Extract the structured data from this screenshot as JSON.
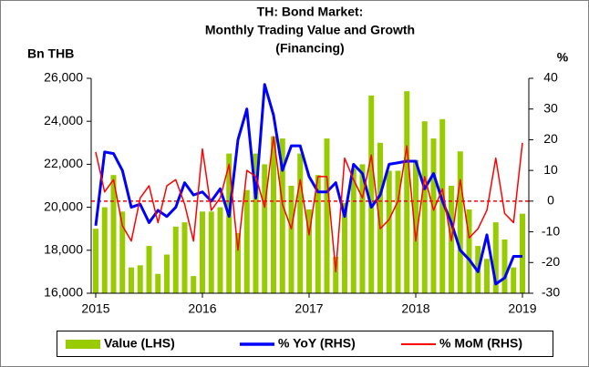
{
  "chart_data": {
    "type": "bar_line",
    "title": [
      "TH: Bond Market:",
      "Monthly Trading Value and Growth",
      "(Financing)"
    ],
    "y_label": "Bn THB",
    "y2_label": "%",
    "categories": [
      "2015",
      null,
      null,
      null,
      null,
      null,
      null,
      null,
      null,
      null,
      null,
      null,
      "2016",
      null,
      null,
      null,
      null,
      null,
      null,
      null,
      null,
      null,
      null,
      null,
      "2017",
      null,
      null,
      null,
      null,
      null,
      null,
      null,
      null,
      null,
      null,
      null,
      "2018",
      null,
      null,
      null,
      null,
      null,
      null,
      null,
      null,
      null,
      null,
      null,
      "2019"
    ],
    "series": [
      {
        "name": "Value (LHS)",
        "color": "#99cc00",
        "kind": "bar",
        "values": [
          19000,
          20000,
          21500,
          19800,
          17200,
          17300,
          18200,
          16900,
          17800,
          19100,
          19300,
          16800,
          19800,
          19800,
          20000,
          22500,
          18800,
          20800,
          22500,
          22000,
          23300,
          23200,
          21000,
          22500,
          19900,
          21500,
          23200,
          17700,
          20200,
          21800,
          22000,
          25200,
          23000,
          21700,
          21700,
          25400,
          22200,
          24000,
          23200,
          24100,
          21000,
          22600,
          19900,
          18200,
          17600,
          19300,
          18500,
          17200,
          19700
        ]
      },
      {
        "name": "% YoY (RHS)",
        "color": "#0000ff",
        "kind": "line",
        "axis": "y2",
        "width": 3,
        "values": [
          -8,
          16,
          15.5,
          10,
          -2,
          -1,
          -7,
          -3,
          -5,
          -2,
          6,
          2,
          3,
          0,
          4,
          -5,
          20,
          30,
          1,
          38,
          28,
          10,
          18,
          18,
          8,
          3,
          3,
          6,
          -5,
          12,
          9,
          -2,
          2,
          12,
          12.5,
          13,
          13,
          4,
          9,
          0,
          -7,
          -16,
          -19,
          -23,
          -11,
          -27,
          -25,
          -18,
          -18
        ]
      },
      {
        "name": "% MoM (RHS)",
        "color": "#ff0000",
        "kind": "line",
        "axis": "y2",
        "width": 1.5,
        "values": [
          16,
          3,
          7,
          -8,
          -13,
          1,
          5,
          -7,
          5,
          7,
          -1,
          -13,
          17,
          -3,
          1,
          12,
          -16,
          10,
          8,
          -2,
          21,
          -1,
          -9,
          7,
          -11,
          8,
          8,
          -23,
          14,
          7,
          1,
          15,
          -9,
          -6,
          0,
          18,
          -13,
          8,
          -3,
          4,
          -13,
          7,
          -12,
          -9,
          -3,
          14,
          -4,
          -7,
          19
        ]
      }
    ],
    "ylim": [
      16000,
      26000
    ],
    "yticks": [
      {
        "value": 16000,
        "label": "16,000"
      },
      {
        "value": 18000,
        "label": "18,000"
      },
      {
        "value": 20000,
        "label": "20,000"
      },
      {
        "value": 22000,
        "label": "22,000"
      },
      {
        "value": 24000,
        "label": "24,000"
      },
      {
        "value": 26000,
        "label": "26,000"
      }
    ],
    "y2lim": [
      -30,
      40
    ],
    "y2ticks": [
      -30,
      -20,
      -10,
      0,
      10,
      20,
      30,
      40
    ],
    "y2_refline": 0,
    "legend": "bottom"
  }
}
